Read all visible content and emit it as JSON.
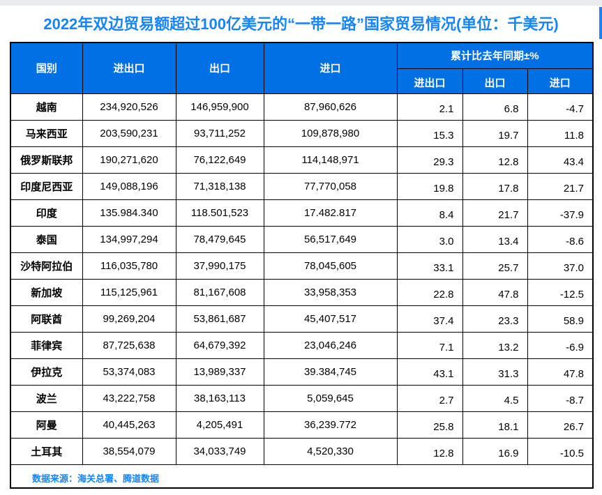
{
  "colors": {
    "header_bg": "#0070e4",
    "header_text": "#ffffff",
    "title_text": "#1684fb",
    "source_text": "#1684fb",
    "grid_line": "#000000",
    "top_bar": "#e9ebee",
    "accent": "#1684fb"
  },
  "table_header": {
    "country": "国别",
    "total": "进出口",
    "export": "出口",
    "import": "进口",
    "yoy_group": "累计比去年同期±%",
    "yoy_sub": [
      "进出口",
      "出口",
      "进口"
    ]
  },
  "chart_data": {
    "type": "table",
    "title": "2022年双边贸易额超过100亿美元的“一带一路”国家贸易情况(单位：千美元)",
    "columns": [
      "国别",
      "进出口",
      "出口",
      "进口",
      "累计比去年同期±% 进出口",
      "累计比去年同期±% 出口",
      "累计比去年同期±% 进口"
    ],
    "rows": [
      [
        "越南",
        "234,920,526",
        "146,959,900",
        "87,960,626",
        "2.1",
        "6.8",
        "-4.7"
      ],
      [
        "马来西亚",
        "203,590,231",
        "93,711,252",
        "109,878,980",
        "15.3",
        "19.7",
        "11.8"
      ],
      [
        "俄罗斯联邦",
        "190,271,620",
        "76,122,649",
        "114,148,971",
        "29.3",
        "12.8",
        "43.4"
      ],
      [
        "印度尼西亚",
        "149,088,196",
        "71,318,138",
        "77,770,058",
        "19.8",
        "17.8",
        "21.7"
      ],
      [
        "印度",
        "135.984.340",
        "118.501,523",
        "17.482.817",
        "8.4",
        "21.7",
        "-37.9"
      ],
      [
        "泰国",
        "134,997,294",
        "78,479,645",
        "56,517,649",
        "3.0",
        "13.4",
        "-8.6"
      ],
      [
        "沙特阿拉伯",
        "116,035,780",
        "37,990,175",
        "78,045,605",
        "33.1",
        "25.7",
        "37.0"
      ],
      [
        "新加坡",
        "115,125,961",
        "81,167,608",
        "33,958,353",
        "22.8",
        "47.8",
        "-12.5"
      ],
      [
        "阿联酋",
        "99,269,204",
        "53,861,687",
        "45,407,517",
        "37.4",
        "23.3",
        "58.9"
      ],
      [
        "菲律宾",
        "87,725,638",
        "64,679,392",
        "23,046,246",
        "7.1",
        "13.2",
        "-6.9"
      ],
      [
        "伊拉克",
        "53,374,083",
        "13,989,337",
        "39.384,745",
        "43.1",
        "31.3",
        "47.8"
      ],
      [
        "波兰",
        "43,222,758",
        "38,163,113",
        "5,059,645",
        "2.7",
        "4.5",
        "-8.7"
      ],
      [
        "阿曼",
        "40,445,263",
        "4,205,491",
        "36,239.772",
        "25.8",
        "18.1",
        "26.7"
      ],
      [
        "土耳其",
        "38,554,079",
        "34,033,749",
        "4,520,330",
        "12.8",
        "16.9",
        "-10.5"
      ]
    ],
    "source": "数据来源：海关总署、腾道数据"
  }
}
